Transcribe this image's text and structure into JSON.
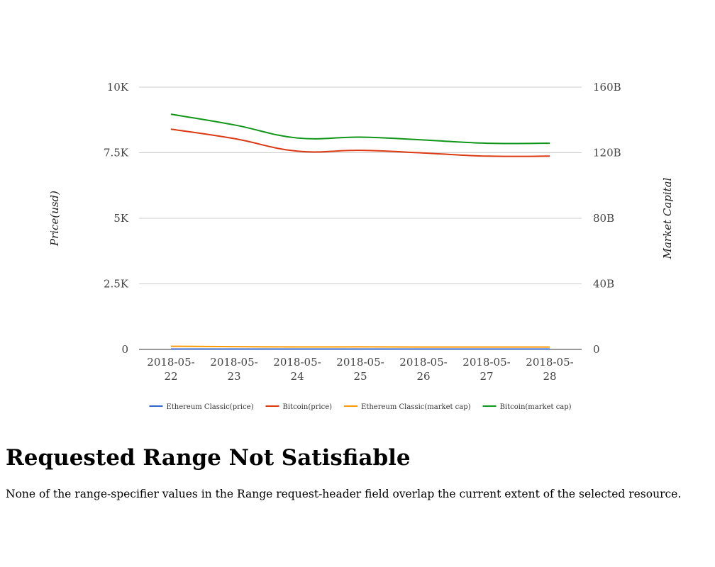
{
  "chart_data": {
    "type": "line",
    "categories": [
      [
        "2018-05-",
        "22"
      ],
      [
        "2018-05-",
        "23"
      ],
      [
        "2018-05-",
        "24"
      ],
      [
        "2018-05-",
        "25"
      ],
      [
        "2018-05-",
        "26"
      ],
      [
        "2018-05-",
        "27"
      ],
      [
        "2018-05-",
        "28"
      ]
    ],
    "x": [
      "2018-05-22",
      "2018-05-23",
      "2018-05-24",
      "2018-05-25",
      "2018-05-26",
      "2018-05-27",
      "2018-05-28"
    ],
    "left_axis": {
      "label": "Price(usd)",
      "range": [
        0,
        10000
      ],
      "ticks": [
        0,
        2500,
        5000,
        7500,
        10000
      ],
      "tick_labels": [
        "0",
        "2.5K",
        "5K",
        "7.5K",
        "10K"
      ]
    },
    "right_axis": {
      "label": "Market Capital",
      "range": [
        0,
        160000000000
      ],
      "ticks": [
        0,
        40000000000,
        80000000000,
        120000000000,
        160000000000
      ],
      "tick_labels": [
        "0",
        "40B",
        "80B",
        "120B",
        "160B"
      ]
    },
    "grid": true,
    "legend_position": "bottom",
    "series": [
      {
        "name": "Ethereum Classic(price)",
        "axis": "left",
        "color": "#3366cc",
        "values": [
          15.2,
          14.8,
          14.1,
          14.3,
          14.0,
          13.7,
          13.6
        ]
      },
      {
        "name": "Bitcoin(price)",
        "axis": "left",
        "color": "#dc3912",
        "values": [
          8400,
          8040,
          7560,
          7590,
          7490,
          7370,
          7370
        ]
      },
      {
        "name": "Ethereum Classic(market cap)",
        "axis": "right",
        "color": "#ff9900",
        "values": [
          1900000000,
          1700000000,
          1500000000,
          1550000000,
          1480000000,
          1450000000,
          1450000000
        ]
      },
      {
        "name": "Bitcoin(market cap)",
        "axis": "right",
        "color": "#109618",
        "values": [
          143500000000,
          137000000000,
          129000000000,
          129500000000,
          127800000000,
          125800000000,
          125800000000
        ]
      }
    ]
  },
  "error": {
    "title": "Requested Range Not Satisfiable",
    "message": "None of the range-specifier values in the Range request-header field overlap the current extent of the selected resource."
  }
}
